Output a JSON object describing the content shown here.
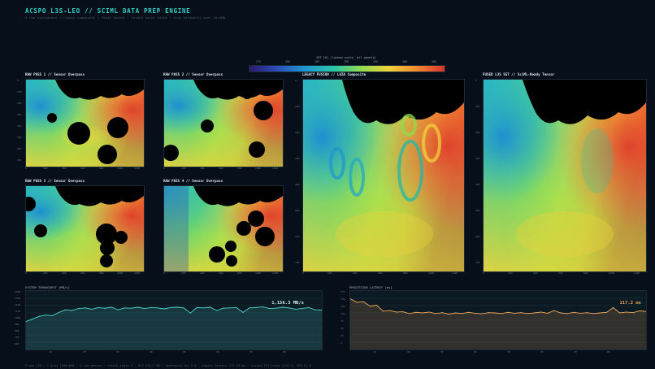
{
  "header": {
    "title": "ACSPO L3S-LEO  //  SCIML DATA PREP ENGINE",
    "subtitle": "4 raw overpasses  → legacy composite  → fused tensor  ·  locked color scale  ·  live telemetry over ZeroMQ"
  },
  "colorbar": {
    "label": "SST [K]  (locked scale, all panels)",
    "ticks": [
      "275",
      "280",
      "285",
      "290",
      "295",
      "300",
      "305"
    ],
    "colors": [
      "#2a1a6e",
      "#2b4fb8",
      "#1f97d0",
      "#25c7a8",
      "#8fdc4f",
      "#f0d23a",
      "#f28a2f",
      "#d7342a"
    ]
  },
  "panels": {
    "raw1": {
      "title": "RAW PASS 1  //  Sensor Overpass"
    },
    "raw2": {
      "title": "RAW PASS 2  //  Sensor Overpass"
    },
    "raw3": {
      "title": "RAW PASS 3  //  Sensor Overpass"
    },
    "raw4": {
      "title": "RAW PASS 4  //  Sensor Overpass"
    },
    "legacy": {
      "title": "LEGACY FUSION  //  LVZA Composite"
    },
    "fused": {
      "title": "FUSED L3S SST  //  SciML-Ready Tensor"
    }
  },
  "small_axis": {
    "x_ticks": [
      "0",
      "200",
      "400",
      "600",
      "800",
      "1000",
      "1200"
    ],
    "y_ticks": [
      "0",
      "100",
      "200",
      "300",
      "400",
      "500",
      "600",
      "700"
    ]
  },
  "large_axis": {
    "x_ticks": [
      "0",
      "200",
      "400",
      "600",
      "800",
      "1000",
      "1200"
    ],
    "y_ticks": [
      "0",
      "100",
      "200",
      "300",
      "400",
      "500",
      "600",
      "700"
    ]
  },
  "telemetry": {
    "throughput": {
      "title": "SYSTEM THROUGHPUT  [MB/s]",
      "readout": "1,156.3 MB/s",
      "color": "#4fd8cf",
      "y_ticks": [
        "1400",
        "1300",
        "1200",
        "1100",
        "1000",
        "900",
        "800",
        "700",
        "600"
      ],
      "x_ticks": [
        "10",
        "20",
        "30",
        "40",
        "50",
        "60",
        "70",
        "80"
      ]
    },
    "latency": {
      "title": "PROCESSING LATENCY  [ms]",
      "readout": "117.2 ms",
      "color": "#f0a85a",
      "y_ticks": [
        "175",
        "150",
        "125",
        "100",
        "75",
        "50",
        "25",
        "0"
      ],
      "x_ticks": [
        "10",
        "20",
        "30",
        "40",
        "50",
        "60",
        "70",
        "80"
      ]
    }
  },
  "chart_data": [
    {
      "type": "area",
      "title": "SYSTEM THROUGHPUT  [MB/s]",
      "ylim": [
        600,
        1400
      ],
      "x": [
        0,
        2,
        4,
        6,
        8,
        10,
        12,
        14,
        16,
        18,
        20,
        22,
        24,
        26,
        28,
        30,
        32,
        34,
        36,
        38,
        40,
        42,
        44,
        46,
        48,
        50,
        52,
        54,
        56,
        58,
        60,
        62,
        64,
        66,
        68,
        70,
        72,
        74,
        76,
        78,
        80,
        82,
        84,
        86,
        88,
        90
      ],
      "values": [
        980,
        1020,
        1060,
        1080,
        1070,
        1120,
        1160,
        1150,
        1180,
        1190,
        1170,
        1195,
        1185,
        1200,
        1160,
        1190,
        1185,
        1200,
        1180,
        1195,
        1190,
        1175,
        1195,
        1200,
        1190,
        1110,
        1195,
        1190,
        1200,
        1150,
        1185,
        1190,
        1195,
        1120,
        1190,
        1195,
        1205,
        1180,
        1185,
        1200,
        1190,
        1170,
        1180,
        1195,
        1160,
        1156
      ]
    },
    {
      "type": "area",
      "title": "PROCESSING LATENCY  [ms]",
      "ylim": [
        0,
        175
      ],
      "x": [
        0,
        2,
        4,
        6,
        8,
        10,
        12,
        14,
        16,
        18,
        20,
        22,
        24,
        26,
        28,
        30,
        32,
        34,
        36,
        38,
        40,
        42,
        44,
        46,
        48,
        50,
        52,
        54,
        56,
        58,
        60,
        62,
        64,
        66,
        68,
        70,
        72,
        74,
        76,
        78,
        80,
        82,
        84,
        86,
        88,
        90
      ],
      "values": [
        160,
        148,
        150,
        135,
        138,
        118,
        120,
        115,
        116,
        110,
        114,
        112,
        115,
        110,
        113,
        108,
        112,
        110,
        114,
        111,
        109,
        113,
        112,
        110,
        114,
        111,
        113,
        110,
        112,
        115,
        111,
        120,
        112,
        110,
        114,
        111,
        113,
        110,
        112,
        114,
        130,
        112,
        115,
        113,
        119,
        117
      ]
    }
  ],
  "footer": "Frame  159 · 1  grid 1200×800  ·  4 raw passes  ·  rebias iters 3  ·  RSS 214.1 MB  ·  dashboard fps  2.0  ·  engine latency 117.20 ms  ·  locked SST scale [282.3, 305.1] K"
}
